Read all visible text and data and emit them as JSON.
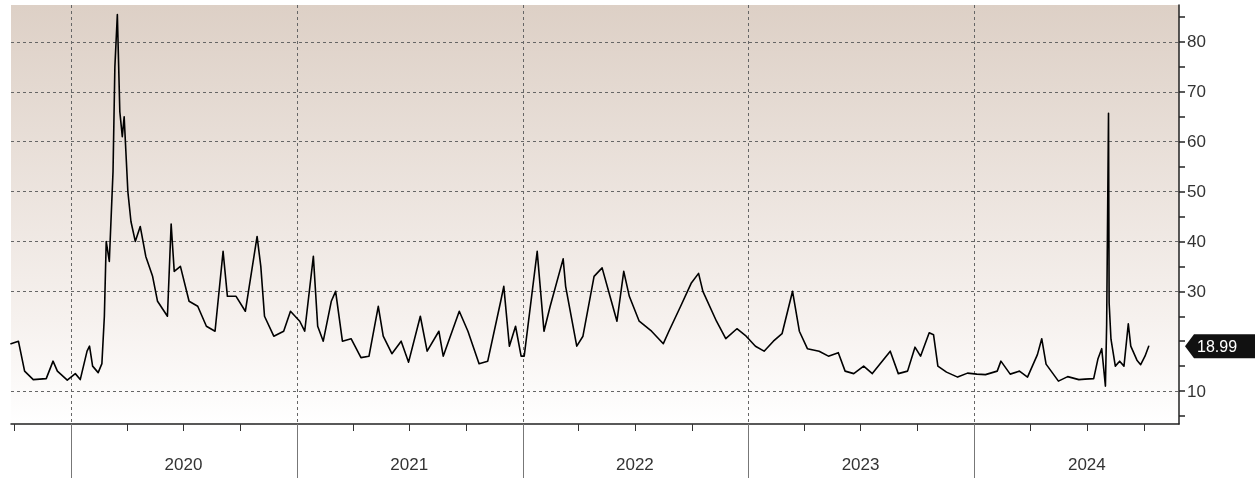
{
  "chart_data": {
    "type": "line",
    "x": [
      "2019-09-26",
      "2019-10-08",
      "2019-10-18",
      "2019-11-01",
      "2019-11-22",
      "2019-12-03",
      "2019-12-10",
      "2019-12-26",
      "2020-01-08",
      "2020-01-16",
      "2020-01-27",
      "2020-01-31",
      "2020-02-05",
      "2020-02-14",
      "2020-02-20",
      "2020-02-24",
      "2020-02-27",
      "2020-03-03",
      "2020-03-09",
      "2020-03-12",
      "2020-03-16",
      "2020-03-20",
      "2020-03-24",
      "2020-03-27",
      "2020-04-02",
      "2020-04-07",
      "2020-04-14",
      "2020-04-22",
      "2020-05-01",
      "2020-05-12",
      "2020-05-20",
      "2020-06-05",
      "2020-06-11",
      "2020-06-16",
      "2020-06-26",
      "2020-07-10",
      "2020-07-24",
      "2020-08-07",
      "2020-08-21",
      "2020-09-03",
      "2020-09-10",
      "2020-09-24",
      "2020-10-09",
      "2020-10-28",
      "2020-11-03",
      "2020-11-09",
      "2020-11-24",
      "2020-12-10",
      "2020-12-21",
      "2021-01-05",
      "2021-01-13",
      "2021-01-27",
      "2021-02-03",
      "2021-02-12",
      "2021-02-25",
      "2021-03-04",
      "2021-03-15",
      "2021-03-29",
      "2021-04-14",
      "2021-04-27",
      "2021-05-12",
      "2021-05-20",
      "2021-06-03",
      "2021-06-18",
      "2021-06-30",
      "2021-07-19",
      "2021-07-30",
      "2021-08-18",
      "2021-08-25",
      "2021-09-20",
      "2021-10-04",
      "2021-10-22",
      "2021-11-05",
      "2021-11-26",
      "2021-12-01",
      "2021-12-10",
      "2021-12-20",
      "2021-12-29",
      "2022-01-03",
      "2022-01-24",
      "2022-02-04",
      "2022-02-14",
      "2022-03-07",
      "2022-03-11",
      "2022-03-29",
      "2022-04-08",
      "2022-04-26",
      "2022-05-09",
      "2022-05-24",
      "2022-06-02",
      "2022-06-13",
      "2022-06-22",
      "2022-07-08",
      "2022-07-28",
      "2022-08-16",
      "2022-08-25",
      "2022-09-13",
      "2022-09-30",
      "2022-10-12",
      "2022-10-19",
      "2022-11-10",
      "2022-11-25",
      "2022-12-13",
      "2022-12-28",
      "2023-01-12",
      "2023-01-26",
      "2023-02-10",
      "2023-02-24",
      "2023-03-13",
      "2023-03-24",
      "2023-04-06",
      "2023-04-25",
      "2023-05-10",
      "2023-05-26",
      "2023-06-06",
      "2023-06-20",
      "2023-07-06",
      "2023-07-20",
      "2023-08-18",
      "2023-08-31",
      "2023-09-15",
      "2023-09-27",
      "2023-10-06",
      "2023-10-20",
      "2023-10-27",
      "2023-11-03",
      "2023-11-17",
      "2023-12-05",
      "2023-12-21",
      "2024-01-05",
      "2024-01-19",
      "2024-02-07",
      "2024-02-13",
      "2024-02-28",
      "2024-03-14",
      "2024-03-27",
      "2024-04-12",
      "2024-04-19",
      "2024-04-26",
      "2024-05-16",
      "2024-05-31",
      "2024-06-18",
      "2024-06-28",
      "2024-07-12",
      "2024-07-19",
      "2024-07-25",
      "2024-07-31",
      "2024-08-02",
      "2024-08-05",
      "2024-08-06",
      "2024-08-09",
      "2024-08-16",
      "2024-08-23",
      "2024-08-30",
      "2024-09-06",
      "2024-09-10",
      "2024-09-20",
      "2024-09-26",
      "2024-10-03",
      "2024-10-09"
    ],
    "series": [
      {
        "color": "#000000",
        "values": [
          19.5,
          20,
          14,
          12.3,
          12.5,
          16,
          14,
          12.2,
          13.5,
          12.3,
          18,
          19,
          15,
          13.7,
          15.5,
          25,
          40,
          36,
          54,
          75,
          85.5,
          66,
          61,
          65,
          50,
          44,
          40,
          43,
          37,
          33,
          28,
          25,
          43.5,
          34,
          35,
          28,
          27,
          23,
          22,
          38,
          29,
          29,
          26,
          41,
          35,
          25,
          21,
          22,
          26,
          24,
          22,
          37,
          23,
          20,
          28,
          30,
          20,
          20.5,
          16.7,
          17,
          27,
          21,
          17.5,
          20,
          15.8,
          25,
          18,
          22,
          17,
          26,
          22,
          15.5,
          16,
          28,
          31,
          19,
          23,
          17,
          17,
          38,
          22,
          27,
          36.5,
          31,
          19,
          21,
          33,
          34.7,
          28,
          24,
          34,
          29,
          24,
          22,
          19.5,
          22,
          27,
          31.6,
          33.6,
          30,
          24,
          20.5,
          22.5,
          21,
          19,
          18,
          20,
          21.5,
          30,
          22,
          18.5,
          18,
          17,
          17.7,
          14,
          13.5,
          15,
          13.5,
          18,
          13.5,
          14,
          18.8,
          17,
          21.7,
          21.3,
          15,
          13.8,
          12.8,
          13.6,
          13.4,
          13.3,
          14,
          16,
          13.4,
          14,
          12.8,
          17.3,
          20.5,
          15.4,
          12,
          12.9,
          12.3,
          12.4,
          12.5,
          16.5,
          18.5,
          11,
          23.4,
          65.7,
          27.7,
          20.4,
          15,
          16,
          15,
          23.5,
          19,
          16.2,
          15.3,
          17,
          18.99
        ]
      }
    ],
    "xlim": [
      "2019-09-26",
      "2024-11-27"
    ],
    "xticks": [
      {
        "value": "2019-10-01",
        "label": null
      },
      {
        "value": "2020-01-01",
        "label": null
      },
      {
        "value": "2020-04-01",
        "label": null
      },
      {
        "value": "2020-07-01",
        "label": "2020"
      },
      {
        "value": "2020-10-01",
        "label": null
      },
      {
        "value": "2021-01-01",
        "label": null
      },
      {
        "value": "2021-04-01",
        "label": null
      },
      {
        "value": "2021-07-01",
        "label": "2021"
      },
      {
        "value": "2021-10-01",
        "label": null
      },
      {
        "value": "2022-01-01",
        "label": null
      },
      {
        "value": "2022-04-01",
        "label": null
      },
      {
        "value": "2022-07-01",
        "label": "2022"
      },
      {
        "value": "2022-10-01",
        "label": null
      },
      {
        "value": "2023-01-01",
        "label": null
      },
      {
        "value": "2023-04-01",
        "label": null
      },
      {
        "value": "2023-07-01",
        "label": "2023"
      },
      {
        "value": "2023-10-01",
        "label": null
      },
      {
        "value": "2024-01-01",
        "label": null
      },
      {
        "value": "2024-04-01",
        "label": null
      },
      {
        "value": "2024-07-01",
        "label": "2024"
      },
      {
        "value": "2024-10-01",
        "label": null
      }
    ],
    "ylim": [
      3.4,
      87.4
    ],
    "yticks": [
      {
        "value": 5,
        "label": null
      },
      10,
      {
        "value": 15,
        "label": null
      },
      {
        "value": 20,
        "label": null
      },
      {
        "value": 25,
        "label": null
      },
      30,
      {
        "value": 35,
        "label": null
      },
      40,
      {
        "value": 45,
        "label": null
      },
      50,
      {
        "value": 55,
        "label": null
      },
      60,
      {
        "value": 65,
        "label": null
      },
      70,
      {
        "value": 75,
        "label": null
      },
      80,
      {
        "value": 85,
        "label": null
      }
    ],
    "annotations": [
      {
        "text": "18.99",
        "x": "2024-10-09",
        "y": 18.99
      }
    ],
    "grid": true,
    "marker": "none",
    "line_style": "solid"
  }
}
